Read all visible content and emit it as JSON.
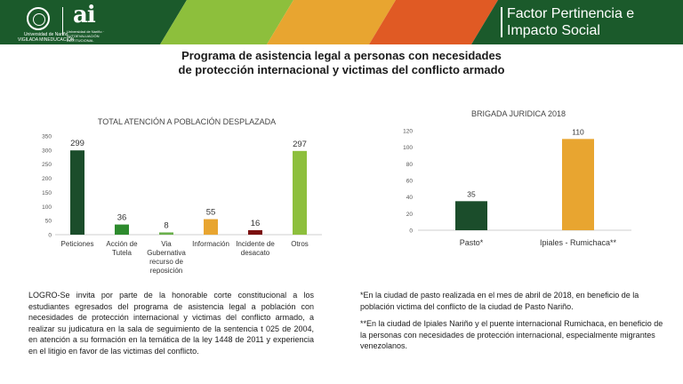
{
  "header": {
    "university_name": "Universidad de Nariño",
    "university_tagline": "VIGILADA MINEDUCACIÓN",
    "ai_logo": "ai",
    "ai_subtitle": "Universidad de Nariño · AUTOEVALUACIÓN INSTITUCIONAL",
    "factor_line1_light": "Factor",
    "factor_line1_bold": "Pertinencia e",
    "factor_line2": "Impacto Social",
    "colors": {
      "green_dark": "#1b5a2b",
      "green_light": "#8dbf3c",
      "orange": "#e8a530",
      "red": "#e05a24"
    }
  },
  "main_title_line1": "Programa de asistencia legal a personas con necesidades",
  "main_title_line2": "de protección internacional y victimas del conflicto armado",
  "chart_data": [
    {
      "type": "bar",
      "title": "TOTAL ATENCIÓN A POBLACIÓN DESPLAZADA",
      "categories": [
        [
          "Peticiones"
        ],
        [
          "Acción de",
          "Tutela"
        ],
        [
          "Via",
          "Gubernativa",
          "recurso de",
          "reposición"
        ],
        [
          "Información"
        ],
        [
          "Incidente de",
          "desacato"
        ],
        [
          "Otros"
        ]
      ],
      "values": [
        299,
        36,
        8,
        55,
        16,
        297
      ],
      "colors": [
        "#1b4d2b",
        "#2e8b2e",
        "#6ab04c",
        "#e8a530",
        "#7a1010",
        "#8dbf3c"
      ],
      "ylim": [
        0,
        350
      ],
      "yticks": [
        0,
        50,
        100,
        150,
        200,
        250,
        300,
        350
      ],
      "grid": false,
      "legend": "none"
    },
    {
      "type": "bar",
      "title": "BRIGADA JURIDICA 2018",
      "categories": [
        [
          "Pasto*"
        ],
        [
          "Ipiales - Rumichaca**"
        ]
      ],
      "values": [
        35,
        110
      ],
      "colors": [
        "#1b4d2b",
        "#e8a530"
      ],
      "ylim": [
        0,
        120
      ],
      "yticks": [
        0,
        20,
        40,
        60,
        80,
        100,
        120
      ],
      "grid": false,
      "legend": "none"
    }
  ],
  "logro_text": "LOGRO-Se invita por parte de la honorable corte constitucional a los estudiantes egresados del programa de asistencia legal a población con necesidades de protección internacional y victimas del conflicto armado, a realizar su judicatura en la sala de seguimiento de la sentencia t 025 de 2004, en atención a su formación en la temática de la ley 1448 de 2011 y experiencia en el litigio en favor de las victimas del conflicto.",
  "note1": "*En la ciudad de pasto realizada en el mes de abril de 2018, en beneficio de la población victima del conflicto de la ciudad de Pasto Nariño.",
  "note2": "**En la ciudad de Ipiales Nariño y el puente internacional Rumichaca, en beneficio de la personas con necesidades de protección internacional, especialmente migrantes venezolanos."
}
